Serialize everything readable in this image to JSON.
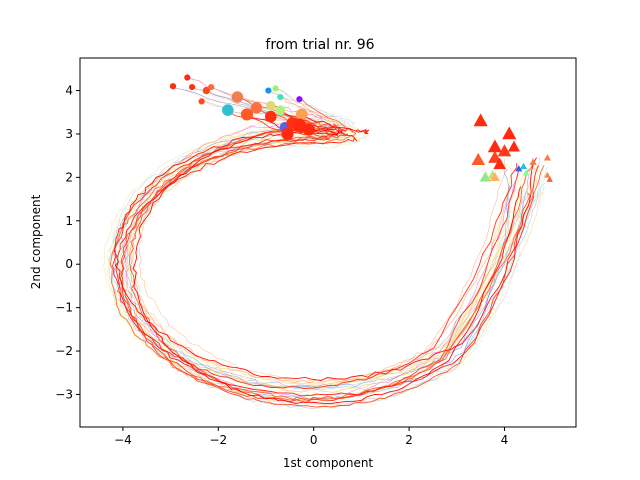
{
  "chart_data": {
    "type": "line",
    "title": "from trial nr. 96",
    "xlabel": "1st component",
    "ylabel": "2nd component",
    "xlim": [
      -4.9,
      5.5
    ],
    "ylim": [
      -3.75,
      4.75
    ],
    "xticks": [
      -4,
      -2,
      0,
      2,
      4
    ],
    "yticks": [
      -3,
      -2,
      -1,
      0,
      1,
      2,
      3,
      4
    ],
    "tick_labels_x": [
      "−4",
      "−2",
      "0",
      "2",
      "4"
    ],
    "tick_labels_y": [
      "−3",
      "−2",
      "−1",
      "0",
      "1",
      "2",
      "3",
      "4"
    ],
    "grid": false,
    "legend": "none",
    "colormap": "rainbow",
    "n_trajectories": 40,
    "trajectory_shape": {
      "start_region": {
        "x": [
          4.0,
          4.9
        ],
        "y": [
          1.6,
          2.5
        ]
      },
      "mid_bottom": {
        "x": [
          -1.5,
          1.0
        ],
        "y": [
          -3.2,
          -2.6
        ]
      },
      "left_extreme_x": -4.4,
      "end_region": {
        "x": [
          -3.0,
          -0.1
        ],
        "y": [
          3.0,
          4.3
        ]
      }
    },
    "start_markers": {
      "shape": "triangle",
      "points": [
        {
          "x": 3.5,
          "y": 3.3,
          "color": "#ff2a10",
          "size": 1.0
        },
        {
          "x": 4.1,
          "y": 3.0,
          "color": "#ff2a10",
          "size": 1.0
        },
        {
          "x": 3.8,
          "y": 2.7,
          "color": "#ff2a10",
          "size": 1.0
        },
        {
          "x": 4.0,
          "y": 2.6,
          "color": "#ff3a14",
          "size": 0.95
        },
        {
          "x": 4.2,
          "y": 2.7,
          "color": "#ff2a10",
          "size": 0.85
        },
        {
          "x": 3.45,
          "y": 2.4,
          "color": "#ff5a2a",
          "size": 0.95
        },
        {
          "x": 3.8,
          "y": 2.45,
          "color": "#ff4020",
          "size": 0.95
        },
        {
          "x": 3.9,
          "y": 2.3,
          "color": "#ff2a10",
          "size": 0.9
        },
        {
          "x": 4.6,
          "y": 2.35,
          "color": "#ff7a40",
          "size": 0.5
        },
        {
          "x": 4.9,
          "y": 2.45,
          "color": "#ff7a40",
          "size": 0.5
        },
        {
          "x": 3.6,
          "y": 2.0,
          "color": "#90e890",
          "size": 0.8
        },
        {
          "x": 3.75,
          "y": 2.05,
          "color": "#c0e870",
          "size": 0.7
        },
        {
          "x": 3.8,
          "y": 2.0,
          "color": "#ffb060",
          "size": 0.7
        },
        {
          "x": 4.3,
          "y": 2.2,
          "color": "#3060f0",
          "size": 0.5
        },
        {
          "x": 4.4,
          "y": 2.25,
          "color": "#20c0e0",
          "size": 0.5
        },
        {
          "x": 4.45,
          "y": 2.1,
          "color": "#80ffa0",
          "size": 0.45
        },
        {
          "x": 4.9,
          "y": 2.05,
          "color": "#ff8040",
          "size": 0.45
        },
        {
          "x": 4.95,
          "y": 1.95,
          "color": "#ff6030",
          "size": 0.45
        }
      ]
    },
    "end_markers": {
      "shape": "circle",
      "points": [
        {
          "x": -2.65,
          "y": 4.3,
          "color": "#ff2a10",
          "size": 0.45
        },
        {
          "x": -2.95,
          "y": 4.1,
          "color": "#ff2a10",
          "size": 0.45
        },
        {
          "x": -2.55,
          "y": 4.08,
          "color": "#ff3010",
          "size": 0.45
        },
        {
          "x": -2.25,
          "y": 4.0,
          "color": "#ff4a1a",
          "size": 0.55
        },
        {
          "x": -2.15,
          "y": 4.08,
          "color": "#ff6a30",
          "size": 0.45
        },
        {
          "x": -2.35,
          "y": 3.75,
          "color": "#ff4a1a",
          "size": 0.45
        },
        {
          "x": -0.8,
          "y": 4.05,
          "color": "#a0f070",
          "size": 0.45
        },
        {
          "x": -0.95,
          "y": 4.0,
          "color": "#1a90f0",
          "size": 0.45
        },
        {
          "x": -0.7,
          "y": 3.85,
          "color": "#40e0c0",
          "size": 0.45
        },
        {
          "x": -0.3,
          "y": 3.8,
          "color": "#8a10ff",
          "size": 0.45
        },
        {
          "x": -1.6,
          "y": 3.85,
          "color": "#f08050",
          "size": 0.85
        },
        {
          "x": -1.2,
          "y": 3.6,
          "color": "#ff7040",
          "size": 0.85
        },
        {
          "x": -1.8,
          "y": 3.55,
          "color": "#30c0d0",
          "size": 0.85
        },
        {
          "x": -0.9,
          "y": 3.65,
          "color": "#e0d870",
          "size": 0.7
        },
        {
          "x": -0.7,
          "y": 3.55,
          "color": "#b0f080",
          "size": 0.7
        },
        {
          "x": -0.25,
          "y": 3.45,
          "color": "#ffa050",
          "size": 0.85
        },
        {
          "x": -1.4,
          "y": 3.45,
          "color": "#ff5a25",
          "size": 0.9
        },
        {
          "x": -0.9,
          "y": 3.4,
          "color": "#ff3010",
          "size": 0.85
        },
        {
          "x": -0.6,
          "y": 3.15,
          "color": "#6060e0",
          "size": 0.8
        },
        {
          "x": -0.45,
          "y": 3.25,
          "color": "#ff3010",
          "size": 0.85
        },
        {
          "x": -0.3,
          "y": 3.2,
          "color": "#ff2a10",
          "size": 1.0
        },
        {
          "x": -0.55,
          "y": 3.0,
          "color": "#ff2a10",
          "size": 0.9
        },
        {
          "x": -0.1,
          "y": 3.1,
          "color": "#ff2a10",
          "size": 0.9
        }
      ]
    }
  }
}
